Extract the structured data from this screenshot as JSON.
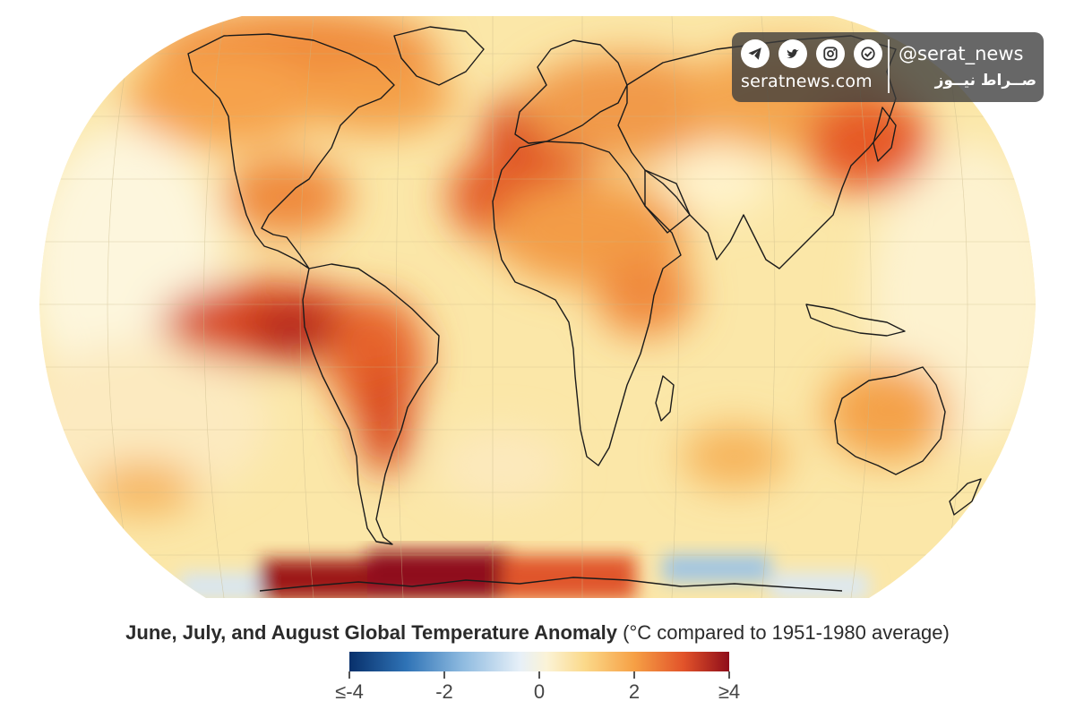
{
  "map": {
    "title_bold": "June, July, and August Global Temperature Anomaly",
    "title_note": "(°C compared to 1951-1980 average)",
    "colorbar": {
      "ticks": [
        "≤-4",
        "-2",
        "0",
        "2",
        "≥4"
      ],
      "min_value": -4,
      "max_value": 4,
      "colors": [
        "#08306b",
        "#2f73b6",
        "#8fbbe0",
        "#e7f0f8",
        "#fbf3d6",
        "#fbd98a",
        "#f6a045",
        "#e2532a",
        "#8f0d1a"
      ]
    },
    "projection": "Robinson-like world map with coastlines and graticule"
  },
  "watermark": {
    "handle": "@serat_news",
    "site": "seratnews.com",
    "persian_name": "صــراط نیــوز",
    "icons": [
      "telegram-icon",
      "twitter-icon",
      "instagram-icon",
      "shield-check-icon"
    ]
  }
}
